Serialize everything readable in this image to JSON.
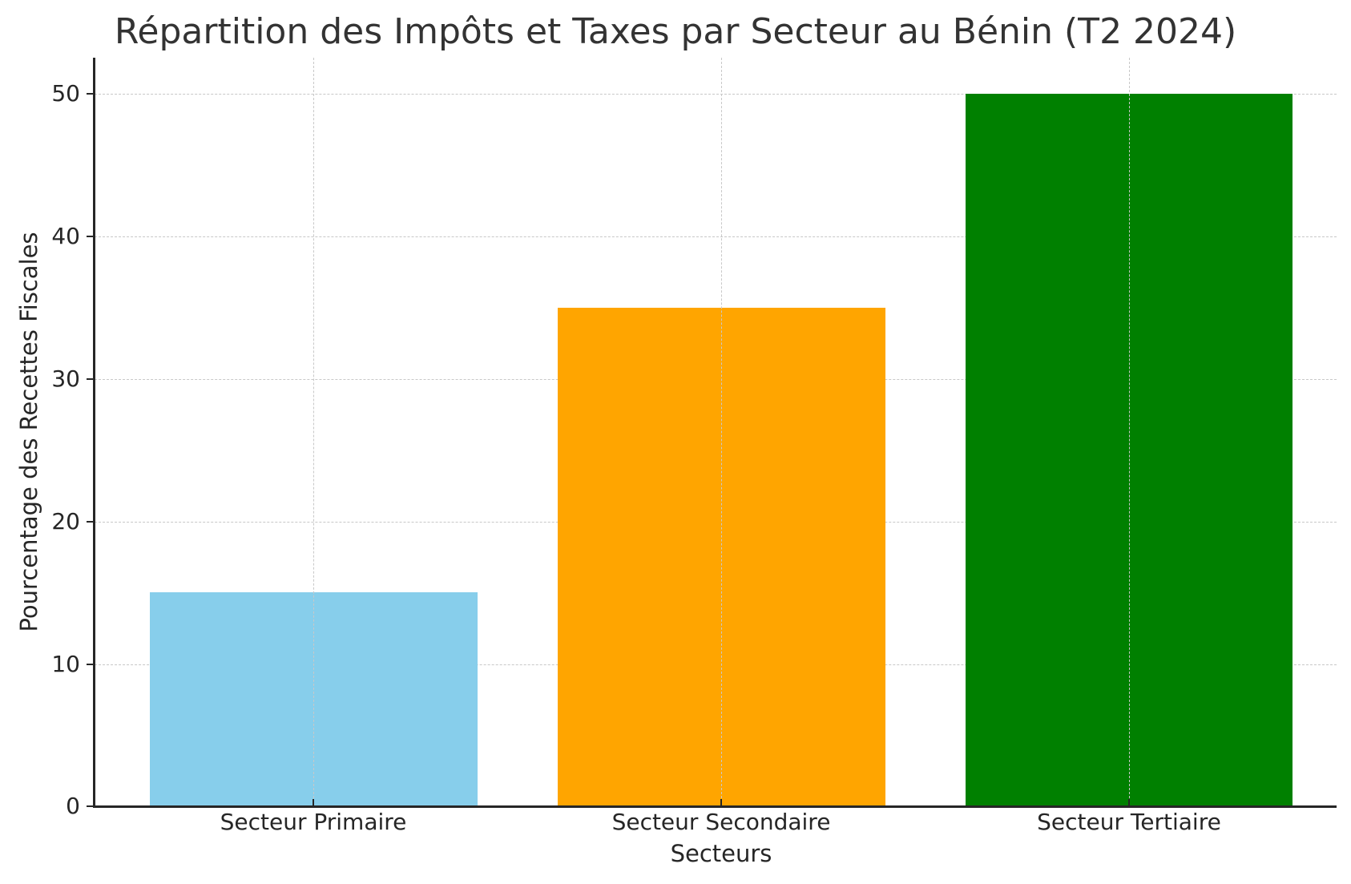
{
  "chart_data": {
    "type": "bar",
    "title": "Répartition des Impôts et Taxes par Secteur au Bénin (T2 2024)",
    "xlabel": "Secteurs",
    "ylabel": "Pourcentage des Recettes Fiscales",
    "categories": [
      "Secteur Primaire",
      "Secteur Secondaire",
      "Secteur Tertiaire"
    ],
    "values": [
      15,
      35,
      50
    ],
    "colors": [
      "#87ceeb",
      "#ffa500",
      "#008000"
    ],
    "ylim": [
      0,
      52.5
    ],
    "yticks": [
      0,
      10,
      20,
      30,
      40,
      50
    ],
    "grid": true,
    "grid_style": "dashed",
    "legend": null
  },
  "labels": {
    "title": "Répartition des Impôts et Taxes par Secteur au Bénin (T2 2024)",
    "xaxis_title": "Secteurs",
    "yaxis_title": "Pourcentage des Recettes Fiscales",
    "yticks": [
      "0",
      "10",
      "20",
      "30",
      "40",
      "50"
    ],
    "xticks": [
      "Secteur Primaire",
      "Secteur Secondaire",
      "Secteur Tertiaire"
    ]
  }
}
